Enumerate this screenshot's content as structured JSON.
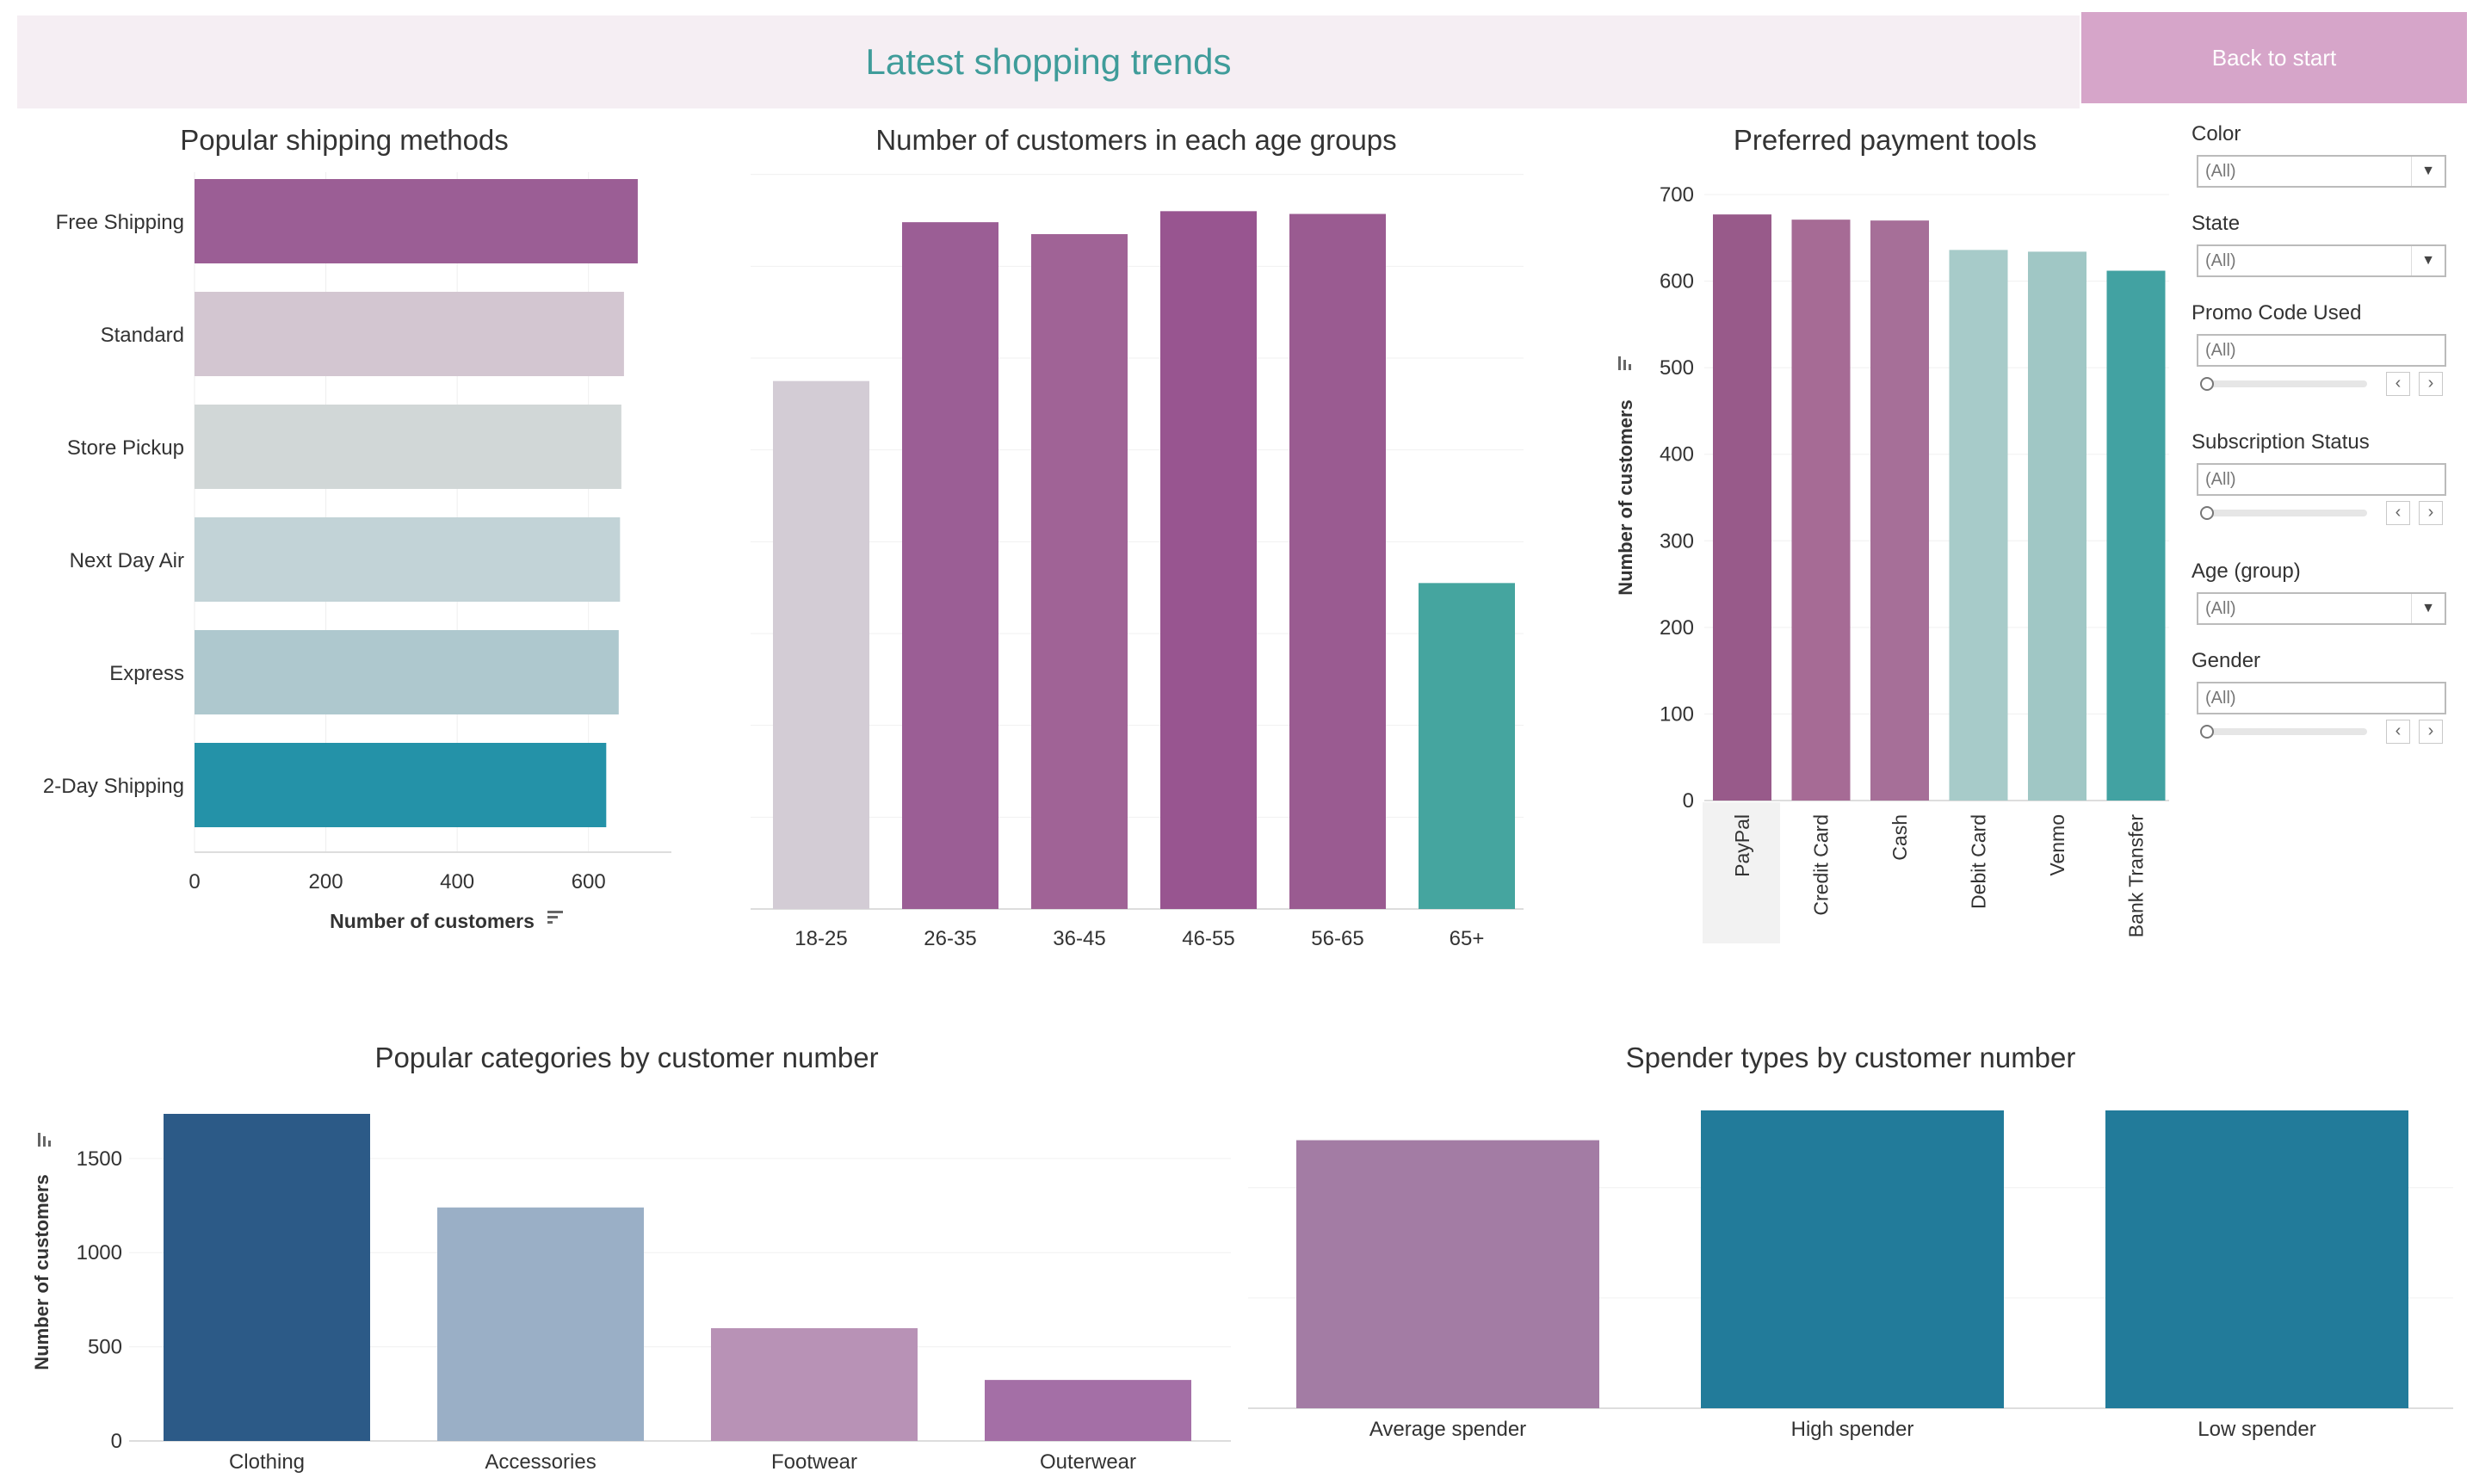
{
  "header": {
    "title": "Latest shopping trends",
    "back_button_label": "Back to start",
    "title_color": "#3f9c9a",
    "bar_color": "#f5eef3",
    "button_color": "#d6a5c9"
  },
  "filters": [
    {
      "label": "Color",
      "value": "(All)",
      "control": "dropdown"
    },
    {
      "label": "State",
      "value": "(All)",
      "control": "dropdown"
    },
    {
      "label": "Promo Code Used",
      "value": "(All)",
      "control": "slider"
    },
    {
      "label": "Subscription Status",
      "value": "(All)",
      "control": "slider"
    },
    {
      "label": "Age (group)",
      "value": "(All)",
      "control": "dropdown"
    },
    {
      "label": "Gender",
      "value": "(All)",
      "control": "slider"
    }
  ],
  "icons": {
    "dropdown": "chevron-down-icon",
    "step_prev": "chevron-left-icon",
    "step_next": "chevron-right-icon",
    "sort": "sort-icon"
  },
  "chart_data": [
    {
      "id": "shipping",
      "type": "bar",
      "orientation": "horizontal",
      "title": "Popular shipping methods",
      "categories": [
        "Free Shipping",
        "Standard",
        "Store Pickup",
        "Next Day Air",
        "Express",
        "2-Day Shipping"
      ],
      "values": [
        675,
        654,
        650,
        648,
        646,
        627
      ],
      "colors": [
        "#9b5e95",
        "#d3c6d1",
        "#d1d7d7",
        "#c2d3d7",
        "#aec8ce",
        "#2492a8"
      ],
      "xlabel": "Number of customers",
      "xlim": [
        0,
        700
      ],
      "xticks": [
        0,
        200,
        400,
        600
      ],
      "grid": true
    },
    {
      "id": "age",
      "type": "bar",
      "title": "Number of customers in each age groups",
      "categories": [
        "18-25",
        "26-35",
        "36-45",
        "46-55",
        "56-65",
        "65+"
      ],
      "values": [
        575,
        748,
        735,
        760,
        757,
        355
      ],
      "colors": [
        "#d3ccd5",
        "#9b5e95",
        "#a06396",
        "#985590",
        "#9a5b91",
        "#45a59f"
      ],
      "ylim": [
        0,
        800
      ],
      "grid": true
    },
    {
      "id": "payment",
      "type": "bar",
      "title": "Preferred payment tools",
      "categories": [
        "PayPal",
        "Credit Card",
        "Cash",
        "Debit Card",
        "Venmo",
        "Bank Transfer"
      ],
      "values": [
        677,
        671,
        670,
        636,
        634,
        612
      ],
      "colors": [
        "#985a8a",
        "#a66b95",
        "#a66f98",
        "#a7cbc9",
        "#a0c7c5",
        "#42a2a2"
      ],
      "ylabel": "Number of customers",
      "ylim": [
        0,
        700
      ],
      "yticks": [
        0,
        100,
        200,
        300,
        400,
        500,
        600,
        700
      ],
      "grid": true
    },
    {
      "id": "categories",
      "type": "bar",
      "title": "Popular categories by customer number",
      "categories": [
        "Clothing",
        "Accessories",
        "Footwear",
        "Outerwear"
      ],
      "values": [
        1737,
        1240,
        599,
        324
      ],
      "colors": [
        "#2c5a87",
        "#9aafc6",
        "#b892b6",
        "#a46fa6"
      ],
      "ylabel": "Number of customers",
      "ylim": [
        0,
        1750
      ],
      "yticks": [
        0,
        500,
        1000,
        1500
      ],
      "grid": true
    },
    {
      "id": "spenders",
      "type": "bar",
      "title": "Spender types by customer number",
      "categories": [
        "Average spender",
        "High spender",
        "Low spender"
      ],
      "values": [
        1215,
        1350,
        1350
      ],
      "colors": [
        "#a37ca4",
        "#227b9a",
        "#227b9a"
      ],
      "ylim": [
        0,
        1400
      ],
      "grid": true
    }
  ]
}
